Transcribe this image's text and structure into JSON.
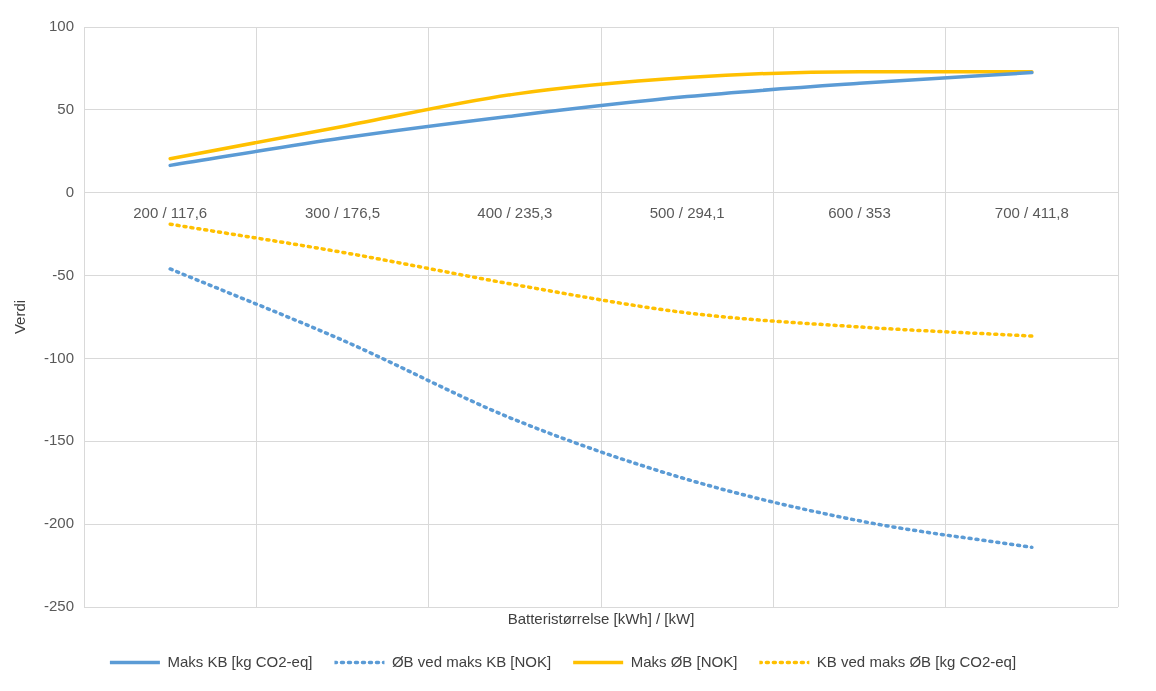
{
  "chart_data": {
    "type": "line",
    "xlabel": "Batteristørrelse [kWh] / [kW]",
    "ylabel": "Verdi",
    "categories": [
      "200 / 117,6",
      "300 / 176,5",
      "400 / 235,3",
      "500 / 294,1",
      "600 / 353",
      "700 / 411,8"
    ],
    "series": [
      {
        "name": "Maks KB [kg CO2-eq]",
        "color": "#5b9bd5",
        "line_style": "solid",
        "values": [
          16.5,
          33,
          46.5,
          58,
          66,
          72.5
        ]
      },
      {
        "name": "ØB ved maks KB [NOK]",
        "color": "#5b9bd5",
        "line_style": "dotted",
        "values": [
          -46,
          -89,
          -137,
          -173,
          -198,
          -214
        ]
      },
      {
        "name": "Maks ØB [NOK]",
        "color": "#ffc000",
        "line_style": "solid",
        "values": [
          20.5,
          40,
          59.5,
          69.5,
          73,
          73
        ]
      },
      {
        "name": "KB ved maks ØB [kg CO2-eq]",
        "color": "#ffc000",
        "line_style": "dotted",
        "values": [
          -19,
          -36,
          -55.5,
          -72.5,
          -81,
          -86.5
        ]
      }
    ],
    "ylim": [
      -250,
      100
    ],
    "yticks": [
      -250,
      -200,
      -150,
      -100,
      -50,
      0,
      50,
      100
    ],
    "grid": true,
    "legend": "bottom",
    "marker": "none"
  }
}
